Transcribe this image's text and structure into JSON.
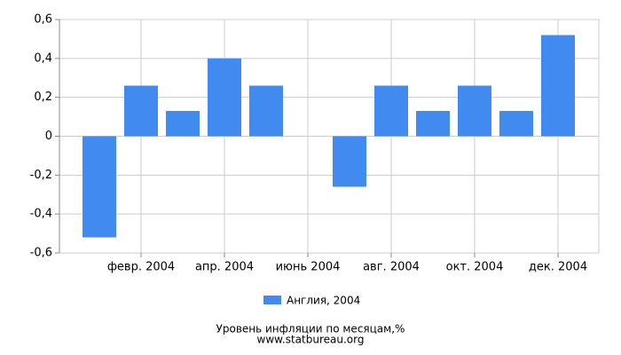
{
  "chart_data": {
    "type": "bar",
    "title": "Уровень инфляции по месяцам,%",
    "source": "www.statbureau.org",
    "categories": [
      null,
      "февр. 2004",
      null,
      "апр. 2004",
      null,
      "июнь 2004",
      null,
      "авг. 2004",
      null,
      "окт. 2004",
      null,
      "дек. 2004"
    ],
    "series": [
      {
        "name": "Англия, 2004",
        "color": "#418af0",
        "values": [
          -0.52,
          0.26,
          0.13,
          0.4,
          0.26,
          0,
          -0.26,
          0.26,
          0.13,
          0.26,
          0.13,
          0.52
        ]
      }
    ],
    "ylim": [
      -0.6,
      0.6
    ],
    "yticks": [
      {
        "value": -0.6,
        "label": "-0,6"
      },
      {
        "value": -0.4,
        "label": "-0,4"
      },
      {
        "value": -0.2,
        "label": "-0,2"
      },
      0,
      {
        "value": 0.2,
        "label": "0,2"
      },
      {
        "value": 0.4,
        "label": "0,4"
      },
      {
        "value": 0.6,
        "label": "0,6"
      }
    ],
    "grid": true,
    "legend": "bottom"
  }
}
